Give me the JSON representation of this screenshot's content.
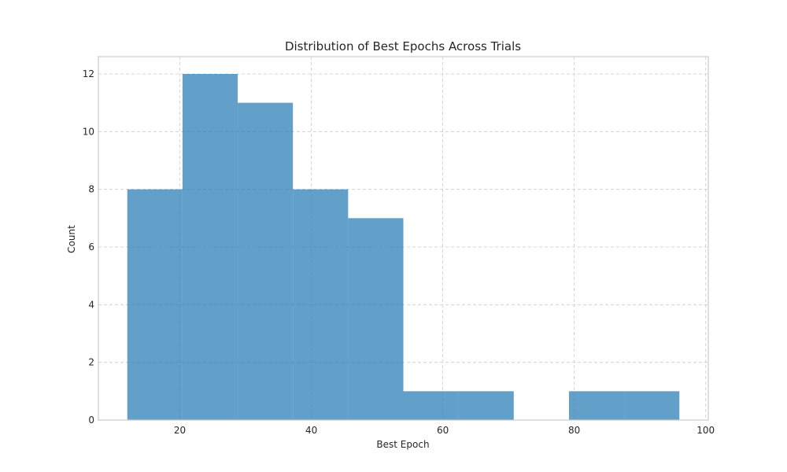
{
  "chart_data": {
    "type": "bar",
    "title": "Distribution of Best Epochs Across Trials",
    "xlabel": "Best Epoch",
    "ylabel": "Count",
    "xlim": [
      7.6,
      100.4
    ],
    "ylim": [
      0,
      12.6
    ],
    "grid": true,
    "colors": {
      "bar": "#1f77b4",
      "bar_opacity": 0.7,
      "grid": "#cccccc",
      "frame": "#cccccc"
    },
    "xticks": [
      "20",
      "40",
      "60",
      "80",
      "100"
    ],
    "yticks": [
      "0",
      "2",
      "4",
      "6",
      "8",
      "10",
      "12"
    ],
    "bins": [
      {
        "x0": 12.0,
        "x1": 20.4,
        "count": 8
      },
      {
        "x0": 20.4,
        "x1": 28.8,
        "count": 12
      },
      {
        "x0": 28.8,
        "x1": 37.2,
        "count": 11
      },
      {
        "x0": 37.2,
        "x1": 45.6,
        "count": 8
      },
      {
        "x0": 45.6,
        "x1": 54.0,
        "count": 7
      },
      {
        "x0": 54.0,
        "x1": 62.4,
        "count": 1
      },
      {
        "x0": 62.4,
        "x1": 70.8,
        "count": 1
      },
      {
        "x0": 70.8,
        "x1": 79.2,
        "count": 0
      },
      {
        "x0": 79.2,
        "x1": 87.6,
        "count": 1
      },
      {
        "x0": 87.6,
        "x1": 96.0,
        "count": 1
      }
    ]
  }
}
